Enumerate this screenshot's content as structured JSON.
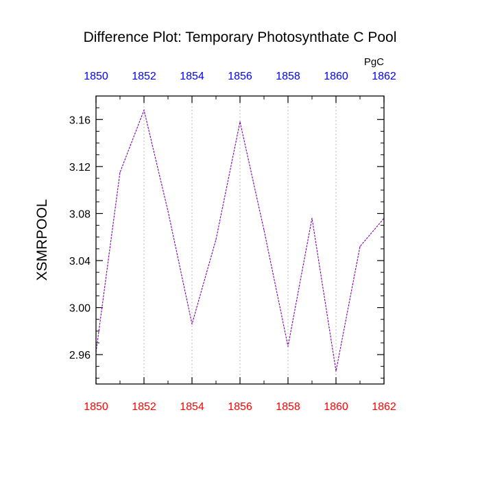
{
  "chart_data": {
    "type": "line",
    "title": "Difference Plot: Temporary Photosynthate C Pool",
    "ylabel": "XSMRPOOL",
    "units": "PgC",
    "x": [
      1850,
      1851,
      1852,
      1853,
      1854,
      1855,
      1856,
      1857,
      1858,
      1859,
      1860,
      1861,
      1862
    ],
    "series": [
      {
        "name": "XSMRPOOL difference",
        "color": "#7a00b0",
        "values": [
          2.962,
          3.115,
          3.168,
          3.082,
          2.986,
          3.058,
          3.158,
          3.066,
          2.967,
          3.076,
          2.946,
          3.052,
          3.076
        ]
      }
    ],
    "xlim": [
      1850,
      1862
    ],
    "ylim": [
      2.935,
      3.18
    ],
    "y_ticks": [
      "2.96",
      "3.00",
      "3.04",
      "3.08",
      "3.12",
      "3.16"
    ],
    "y_tick_values": [
      2.96,
      3.0,
      3.04,
      3.08,
      3.12,
      3.16
    ],
    "x_ticks_bottom": [
      "1850",
      "1852",
      "1854",
      "1856",
      "1858",
      "1860",
      "1862"
    ],
    "x_ticks_top": [
      "1850",
      "1852",
      "1854",
      "1856",
      "1858",
      "1860",
      "1862"
    ],
    "x_tick_values": [
      1850,
      1852,
      1854,
      1856,
      1858,
      1860,
      1862
    ],
    "bottom_tick_color": "#ff0000",
    "top_tick_color": "#0000ff",
    "grid": "vertical dotted"
  }
}
